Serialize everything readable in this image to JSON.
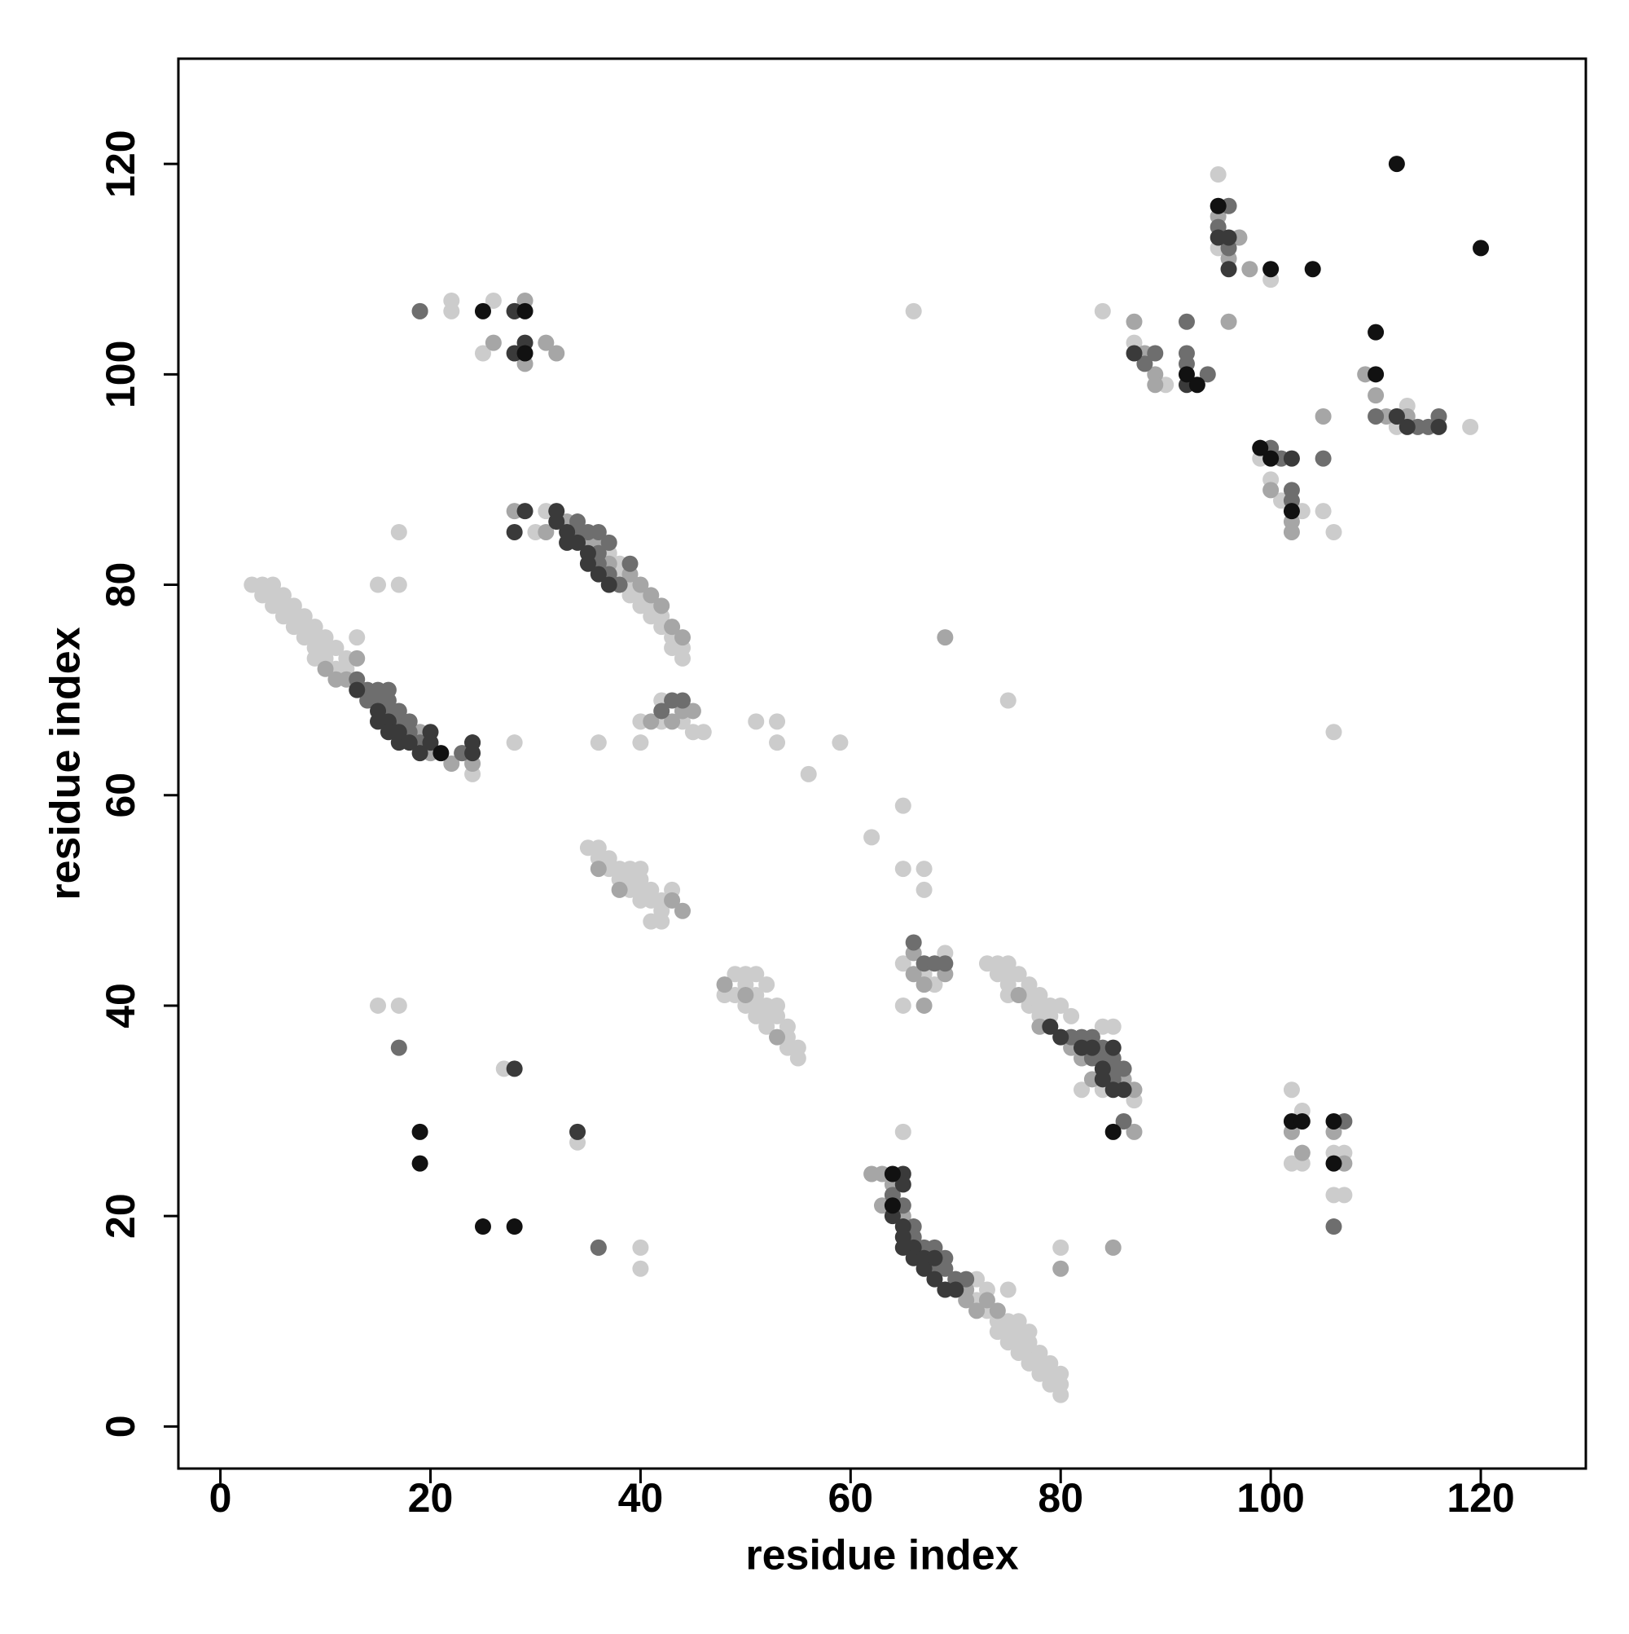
{
  "chart_data": {
    "type": "scatter",
    "xlabel": "residue index",
    "ylabel": "residue index",
    "xlim": [
      -4,
      130
    ],
    "ylim": [
      -4,
      130
    ],
    "xticks": [
      0,
      20,
      40,
      60,
      80,
      100,
      120
    ],
    "yticks": [
      0,
      20,
      40,
      60,
      80,
      100,
      120
    ],
    "series": [
      {
        "color": "#cccccc",
        "x": [
          3,
          4,
          5,
          4,
          5,
          6,
          5,
          6,
          7,
          6,
          7,
          8,
          7,
          8,
          9,
          8,
          9,
          10,
          9,
          10,
          11,
          9,
          10,
          12,
          13,
          11,
          12,
          24,
          23,
          15,
          17,
          17,
          28,
          36,
          40,
          72,
          73,
          75,
          72,
          73,
          74,
          75,
          74,
          75,
          76,
          75,
          76,
          77,
          76,
          77,
          78,
          77,
          78,
          79,
          78,
          79,
          80,
          79,
          80,
          80,
          76,
          77,
          35,
          36,
          36,
          37,
          37,
          38,
          39,
          40,
          38,
          39,
          40,
          41,
          40,
          39,
          41,
          42,
          40,
          42,
          41,
          42,
          43,
          49,
          50,
          51,
          50,
          52,
          48,
          51,
          50,
          51,
          52,
          53,
          51,
          52,
          53,
          52,
          54,
          54,
          54,
          55,
          55,
          49,
          73,
          74,
          75,
          74,
          75,
          76,
          75,
          77,
          75,
          77,
          78,
          77,
          78,
          79,
          80,
          78,
          79,
          81,
          84,
          85,
          82,
          84,
          87,
          31,
          30,
          33,
          37,
          38,
          38,
          39,
          39,
          40,
          40,
          41,
          41,
          42,
          42,
          43,
          44,
          44,
          43,
          25,
          22,
          22,
          26,
          62,
          65,
          65,
          67,
          67,
          65,
          65,
          51,
          53,
          53,
          56,
          59,
          66,
          75,
          95,
          95,
          84,
          87,
          90,
          100,
          101,
          103,
          105,
          106,
          106,
          119,
          112,
          102,
          103,
          106,
          107,
          106,
          107,
          102,
          103,
          27,
          34,
          15,
          17,
          40,
          40,
          80,
          65,
          67,
          68,
          69,
          42,
          43,
          42,
          44,
          45,
          46,
          99,
          100,
          113,
          40
        ],
        "values": [
          80,
          80,
          80,
          79,
          79,
          79,
          78,
          78,
          78,
          77,
          77,
          77,
          76,
          76,
          76,
          75,
          75,
          75,
          74,
          74,
          74,
          73,
          73,
          73,
          75,
          72,
          72,
          62,
          64,
          80,
          80,
          85,
          65,
          65,
          65,
          14,
          13,
          13,
          12,
          11,
          10,
          10,
          9,
          9,
          9,
          8,
          8,
          8,
          7,
          7,
          7,
          6,
          6,
          6,
          5,
          5,
          5,
          4,
          4,
          3,
          10,
          9,
          55,
          55,
          54,
          54,
          53,
          53,
          53,
          53,
          52,
          52,
          52,
          51,
          51,
          51,
          50,
          50,
          50,
          49,
          48,
          48,
          51,
          43,
          43,
          43,
          42,
          42,
          41,
          41,
          40,
          40,
          40,
          40,
          39,
          39,
          39,
          38,
          38,
          37,
          36,
          36,
          35,
          41,
          44,
          44,
          44,
          43,
          43,
          43,
          42,
          42,
          41,
          41,
          41,
          40,
          40,
          40,
          40,
          39,
          39,
          39,
          38,
          38,
          32,
          32,
          31,
          87,
          85,
          84,
          83,
          82,
          81,
          80,
          79,
          79,
          78,
          78,
          77,
          77,
          76,
          75,
          74,
          73,
          74,
          102,
          107,
          106,
          107,
          56,
          59,
          53,
          53,
          51,
          40,
          28,
          67,
          67,
          65,
          62,
          65,
          106,
          69,
          119,
          112,
          106,
          103,
          99,
          109,
          88,
          87,
          87,
          85,
          66,
          95,
          95,
          25,
          25,
          22,
          22,
          26,
          26,
          32,
          30,
          34,
          27,
          40,
          40,
          17,
          15,
          17,
          44,
          43,
          42,
          45,
          69,
          69,
          67,
          67,
          66,
          66,
          92,
          90,
          97,
          67
        ]
      },
      {
        "color": "#a6a6a6",
        "x": [
          10,
          11,
          12,
          13,
          22,
          24,
          19,
          20,
          63,
          64,
          65,
          63,
          73,
          74,
          71,
          72,
          36,
          38,
          43,
          44,
          48,
          50,
          53,
          76,
          78,
          80,
          81,
          82,
          83,
          86,
          87,
          33,
          31,
          35,
          36,
          37,
          39,
          40,
          41,
          42,
          43,
          44,
          28,
          29,
          26,
          28,
          31,
          32,
          88,
          87,
          89,
          89,
          96,
          97,
          96,
          98,
          95,
          100,
          102,
          102,
          105,
          109,
          110,
          111,
          113,
          102,
          103,
          106,
          107,
          87,
          66,
          67,
          66,
          67,
          69,
          44,
          45,
          41,
          43,
          69,
          85,
          80,
          36,
          19,
          29,
          62,
          71,
          70
        ],
        "values": [
          72,
          71,
          71,
          73,
          63,
          63,
          66,
          64,
          24,
          23,
          20,
          21,
          12,
          11,
          12,
          11,
          53,
          51,
          50,
          49,
          42,
          41,
          37,
          41,
          38,
          37,
          36,
          35,
          33,
          33,
          32,
          86,
          85,
          84,
          84,
          82,
          81,
          80,
          79,
          78,
          76,
          75,
          87,
          101,
          103,
          102,
          103,
          102,
          102,
          105,
          100,
          99,
          105,
          113,
          111,
          110,
          115,
          89,
          85,
          86,
          96,
          100,
          98,
          96,
          96,
          28,
          26,
          28,
          25,
          28,
          45,
          42,
          43,
          40,
          43,
          68,
          68,
          67,
          67,
          75,
          17,
          15,
          17,
          106,
          107,
          24,
          13,
          14
        ]
      },
      {
        "color": "#6e6e6e",
        "x": [
          14,
          15,
          16,
          13,
          15,
          16,
          17,
          17,
          18,
          19,
          14,
          16,
          18,
          65,
          64,
          66,
          67,
          66,
          68,
          69,
          68,
          69,
          70,
          71,
          84,
          83,
          82,
          81,
          83,
          84,
          85,
          85,
          86,
          85,
          34,
          34,
          35,
          36,
          36,
          37,
          37,
          38,
          36,
          39,
          86,
          92,
          92,
          92,
          88,
          89,
          94,
          96,
          96,
          95,
          100,
          101,
          102,
          102,
          105,
          110,
          112,
          114,
          115,
          116,
          107,
          24,
          43,
          44,
          42,
          67,
          66,
          68,
          69,
          17,
          36,
          106,
          23,
          28,
          19
        ],
        "values": [
          70,
          70,
          70,
          71,
          69,
          68,
          68,
          67,
          66,
          65,
          69,
          69,
          67,
          21,
          22,
          19,
          17,
          18,
          17,
          16,
          15,
          15,
          14,
          14,
          36,
          37,
          37,
          37,
          35,
          35,
          35,
          34,
          34,
          33,
          86,
          85,
          85,
          85,
          83,
          81,
          84,
          80,
          82,
          82,
          29,
          105,
          102,
          101,
          101,
          102,
          100,
          116,
          112,
          114,
          93,
          92,
          88,
          89,
          92,
          96,
          96,
          95,
          95,
          96,
          29,
          65,
          69,
          69,
          68,
          44,
          46,
          44,
          44,
          36,
          17,
          19,
          64,
          106,
          106
        ]
      },
      {
        "color": "#3a3a3a",
        "x": [
          13,
          15,
          16,
          15,
          16,
          17,
          17,
          18,
          19,
          20,
          20,
          24,
          24,
          64,
          65,
          65,
          65,
          66,
          66,
          67,
          67,
          68,
          69,
          70,
          68,
          32,
          32,
          33,
          33,
          34,
          35,
          35,
          36,
          37,
          84,
          84,
          85,
          86,
          85,
          83,
          82,
          80,
          79,
          28,
          29,
          28,
          34,
          65,
          87,
          92,
          95,
          96,
          96,
          102,
          112,
          113,
          116,
          28,
          29,
          28,
          65
        ],
        "values": [
          70,
          68,
          67,
          67,
          66,
          66,
          65,
          65,
          64,
          66,
          65,
          64,
          65,
          20,
          19,
          18,
          17,
          17,
          16,
          16,
          15,
          14,
          13,
          13,
          16,
          87,
          86,
          85,
          84,
          84,
          83,
          82,
          81,
          80,
          33,
          34,
          32,
          32,
          36,
          36,
          36,
          37,
          38,
          85,
          87,
          34,
          28,
          24,
          102,
          99,
          113,
          113,
          110,
          92,
          96,
          95,
          95,
          102,
          103,
          106,
          23
        ]
      },
      {
        "color": "#111111",
        "x": [
          19,
          25,
          28,
          19,
          21,
          64,
          64,
          29,
          25,
          29,
          93,
          92,
          95,
          99,
          100,
          104,
          100,
          102,
          112,
          120,
          110,
          110,
          102,
          103,
          106,
          106,
          85
        ],
        "values": [
          25,
          19,
          19,
          28,
          64,
          24,
          21,
          106,
          106,
          102,
          99,
          100,
          116,
          93,
          110,
          110,
          92,
          87,
          120,
          112,
          104,
          100,
          29,
          29,
          25,
          29,
          28
        ]
      }
    ]
  }
}
